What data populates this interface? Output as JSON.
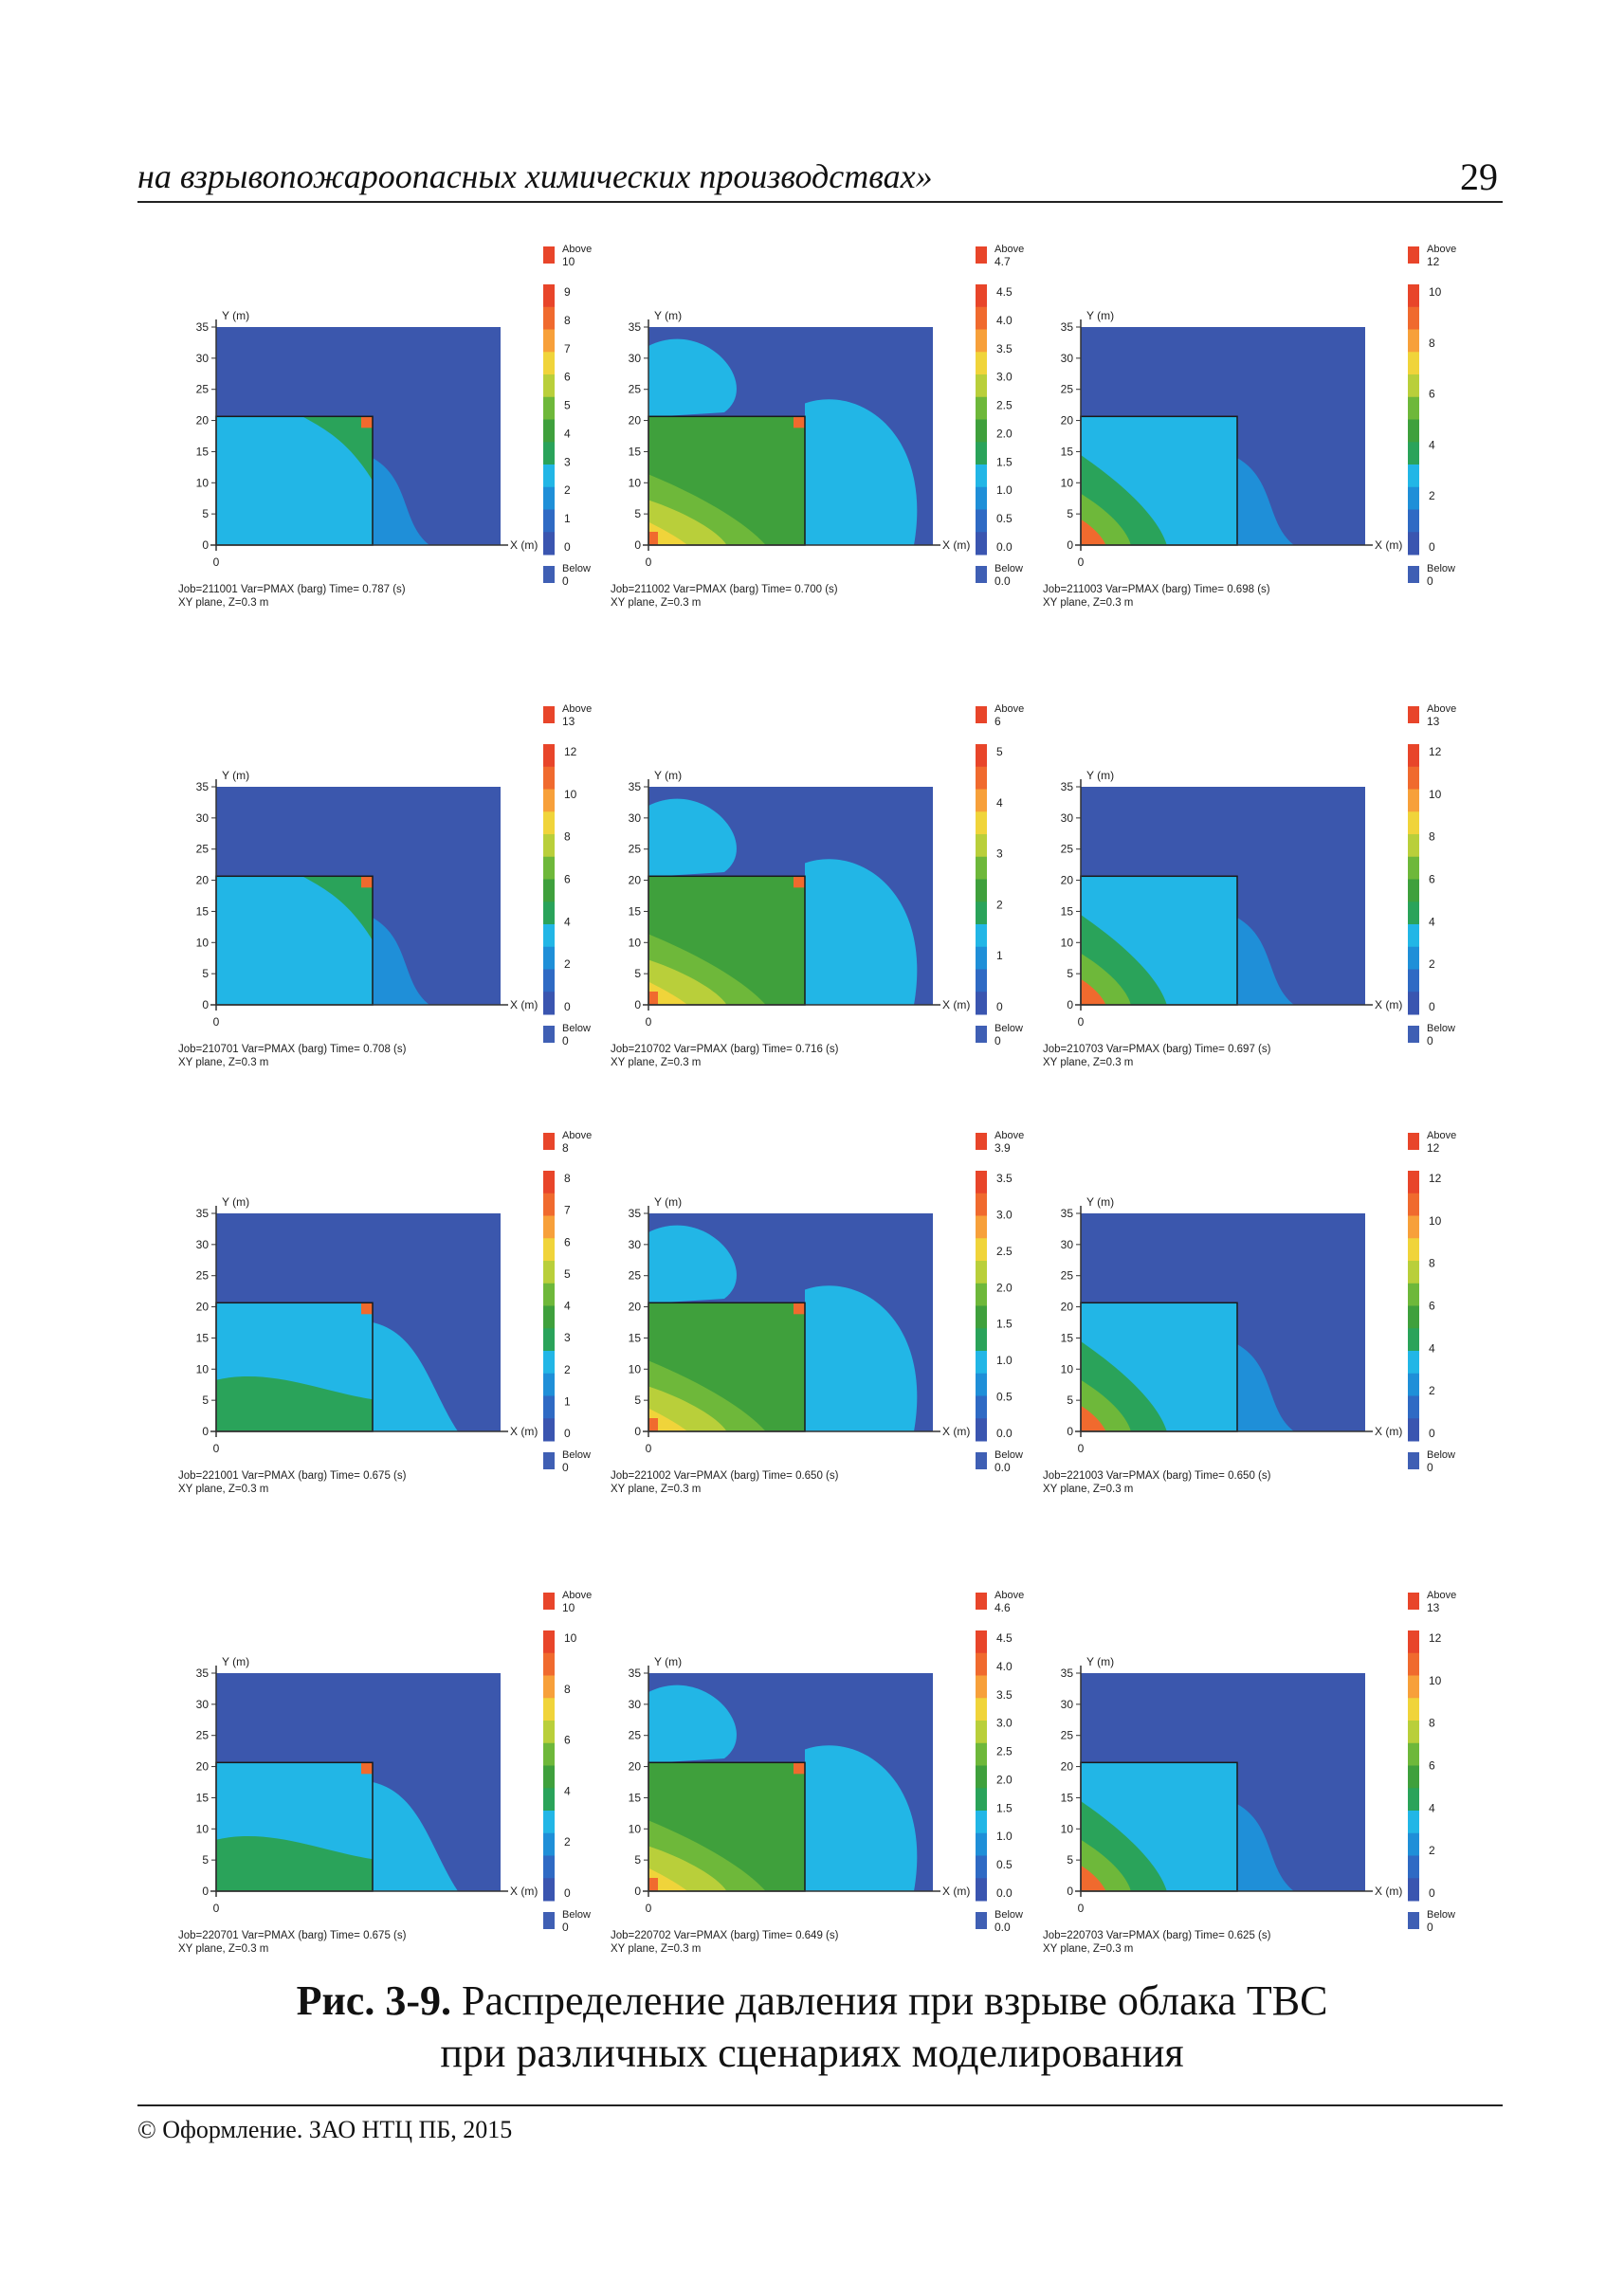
{
  "header": {
    "running_title": "на взрывопожароопасных химических производствах»",
    "page_number": "29"
  },
  "colors": {
    "below": "#3f5fb4",
    "scale": [
      "#3a55b0",
      "#2f6ac4",
      "#1f8fd8",
      "#22b6e6",
      "#2aa35a",
      "#3fa03c",
      "#6eb83a",
      "#b9cf3a",
      "#f0d43a",
      "#f7a03a",
      "#f06a2e",
      "#e8452a"
    ],
    "background_field": "#3b57ad",
    "block_outline": "#1a1a1a"
  },
  "plot_common": {
    "y_axis_label": "Y (m)",
    "x_axis_label": "X (m)",
    "y_ticks": [
      "0",
      "5",
      "10",
      "15",
      "20",
      "25",
      "30",
      "35"
    ],
    "x_tick": "0",
    "plane_line": "XY plane, Z=0.3 m",
    "legend_above": "Above",
    "legend_below": "Below"
  },
  "plots": [
    {
      "job": "Job=211001 ",
      "var": "Var=PMAX (barg)",
      "time": "Time=  0.787 (s)",
      "above": "10",
      "below": "0",
      "ticks": [
        "9",
        "8",
        "7",
        "6",
        "5",
        "4",
        "3",
        "2",
        "1",
        "0"
      ],
      "fill": "a"
    },
    {
      "job": "Job=211002 ",
      "var": "Var=PMAX (barg)",
      "time": "Time=  0.700 (s)",
      "above": "4.7",
      "below": "0.0",
      "ticks": [
        "4.5",
        "4.0",
        "3.5",
        "3.0",
        "2.5",
        "2.0",
        "1.5",
        "1.0",
        "0.5",
        "0.0"
      ],
      "fill": "b"
    },
    {
      "job": "Job=211003 ",
      "var": "Var=PMAX (barg)",
      "time": "Time=  0.698 (s)",
      "above": "12",
      "below": "0",
      "ticks": [
        "10",
        "8",
        "6",
        "4",
        "2",
        "0"
      ],
      "fill": "c"
    },
    {
      "job": "Job=210701 ",
      "var": "Var=PMAX (barg)",
      "time": "Time=  0.708 (s)",
      "above": "13",
      "below": "0",
      "ticks": [
        "12",
        "10",
        "8",
        "6",
        "4",
        "2",
        "0"
      ],
      "fill": "a"
    },
    {
      "job": "Job=210702 ",
      "var": "Var=PMAX (barg)",
      "time": "Time=  0.716 (s)",
      "above": "6",
      "below": "0",
      "ticks": [
        "5",
        "4",
        "3",
        "2",
        "1",
        "0"
      ],
      "fill": "b"
    },
    {
      "job": "Job=210703 ",
      "var": "Var=PMAX (barg)",
      "time": "Time=  0.697 (s)",
      "above": "13",
      "below": "0",
      "ticks": [
        "12",
        "10",
        "8",
        "6",
        "4",
        "2",
        "0"
      ],
      "fill": "c"
    },
    {
      "job": "Job=221001 ",
      "var": "Var=PMAX (barg)",
      "time": "Time=  0.675 (s)",
      "above": "8",
      "below": "0",
      "ticks": [
        "8",
        "7",
        "6",
        "5",
        "4",
        "3",
        "2",
        "1",
        "0"
      ],
      "fill": "d"
    },
    {
      "job": "Job=221002 ",
      "var": "Var=PMAX (barg)",
      "time": "Time=  0.650 (s)",
      "above": "3.9",
      "below": "0.0",
      "ticks": [
        "3.5",
        "3.0",
        "2.5",
        "2.0",
        "1.5",
        "1.0",
        "0.5",
        "0.0"
      ],
      "fill": "e"
    },
    {
      "job": "Job=221003 ",
      "var": "Var=PMAX (barg)",
      "time": "Time=  0.650 (s)",
      "above": "12",
      "below": "0",
      "ticks": [
        "12",
        "10",
        "8",
        "6",
        "4",
        "2",
        "0"
      ],
      "fill": "f"
    },
    {
      "job": "Job=220701 ",
      "var": "Var=PMAX (barg)",
      "time": "Time=  0.675 (s)",
      "above": "10",
      "below": "0",
      "ticks": [
        "10",
        "8",
        "6",
        "4",
        "2",
        "0"
      ],
      "fill": "d"
    },
    {
      "job": "Job=220702 ",
      "var": "Var=PMAX (barg)",
      "time": "Time=  0.649 (s)",
      "above": "4.6",
      "below": "0.0",
      "ticks": [
        "4.5",
        "4.0",
        "3.5",
        "3.0",
        "2.5",
        "2.0",
        "1.5",
        "1.0",
        "0.5",
        "0.0"
      ],
      "fill": "e"
    },
    {
      "job": "Job=220703 ",
      "var": "Var=PMAX (barg)",
      "time": "Time=  0.625 (s)",
      "above": "13",
      "below": "0",
      "ticks": [
        "12",
        "10",
        "8",
        "6",
        "4",
        "2",
        "0"
      ],
      "fill": "f"
    }
  ],
  "caption": {
    "label": "Рис. 3-9.",
    "line1": " Распределение давления при взрыве облака ТВС",
    "line2": "при различных сценариях моделирования"
  },
  "footer": {
    "text": "© Оформление. ЗАО НТЦ ПБ, 2015"
  }
}
